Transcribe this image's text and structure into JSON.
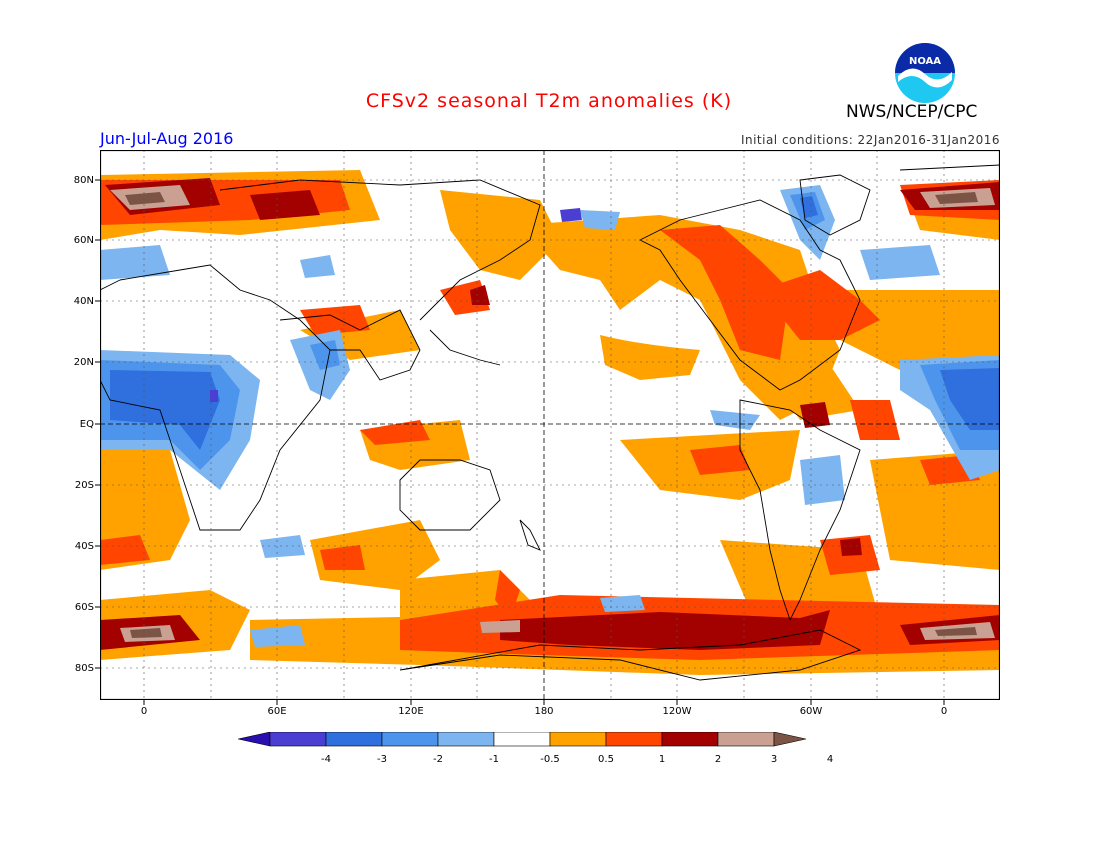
{
  "header": {
    "title": "CFSv2 seasonal T2m anomalies (K)",
    "period": "Jun-Jul-Aug 2016",
    "initial_conditions": "Initial conditions: 22Jan2016-31Jan2016",
    "agency": "NWS/NCEP/CPC",
    "logo_icon": "noaa-logo-icon",
    "logo_text": "NOAA"
  },
  "map": {
    "projection": "equirectangular",
    "lon_ticks": [
      "0",
      "60E",
      "120E",
      "180",
      "120W",
      "60W",
      "0"
    ],
    "lat_ticks": [
      "80N",
      "60N",
      "40N",
      "20N",
      "EQ",
      "20S",
      "40S",
      "60S",
      "80S"
    ],
    "grid": "dotted"
  },
  "legend": {
    "labels": [
      "-4",
      "-3",
      "-2",
      "-1",
      "-0.5",
      "0.5",
      "1",
      "2",
      "3",
      "4"
    ],
    "colors": [
      "#2a0eb0",
      "#4b3fd3",
      "#2f6fde",
      "#4d95ec",
      "#7cb5f0",
      "#ffffff",
      "#ffa200",
      "#ff4500",
      "#a30000",
      "#c9a092",
      "#7b5446"
    ]
  }
}
